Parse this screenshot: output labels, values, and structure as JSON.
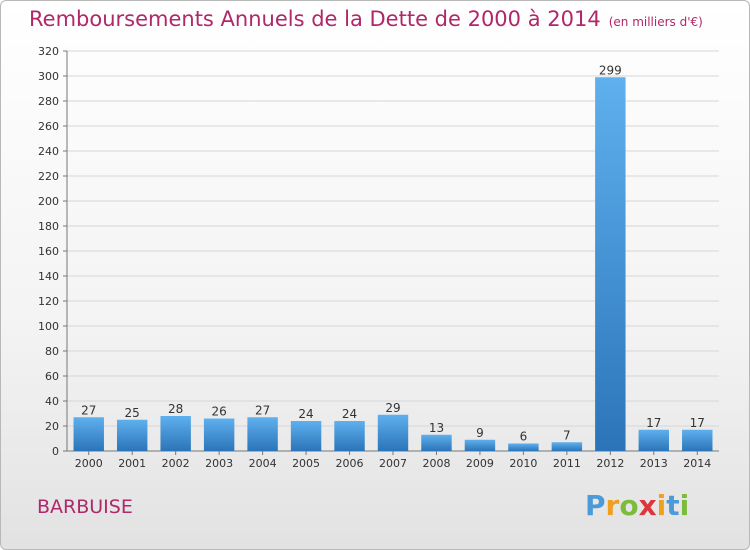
{
  "chart_data": {
    "type": "bar",
    "title": "Remboursements Annuels de la Dette de 2000 à 2014",
    "subtitle": "(en milliers d'€)",
    "categories": [
      "2000",
      "2001",
      "2002",
      "2003",
      "2004",
      "2005",
      "2006",
      "2007",
      "2008",
      "2009",
      "2010",
      "2011",
      "2012",
      "2013",
      "2014"
    ],
    "values": [
      27,
      25,
      28,
      26,
      27,
      24,
      24,
      29,
      13,
      9,
      6,
      7,
      299,
      17,
      17
    ],
    "ylim": [
      0,
      320
    ],
    "yticks": [
      0,
      20,
      40,
      60,
      80,
      100,
      120,
      140,
      160,
      180,
      200,
      220,
      240,
      260,
      280,
      300,
      320
    ],
    "grid": true,
    "bar_color": "#3f8fd6",
    "bar_color_light": "#5fb0ee",
    "bar_color_dark": "#2b74b8"
  },
  "footer": {
    "place": "BARBUISE",
    "logo_letters": [
      "P",
      "r",
      "o",
      "x",
      "i",
      "t",
      "i"
    ],
    "logo_colors": [
      "#4b9bd9",
      "#f0a020",
      "#7dbb3a",
      "#e0343c",
      "#f0a020",
      "#4b9bd9",
      "#7dbb3a"
    ]
  }
}
